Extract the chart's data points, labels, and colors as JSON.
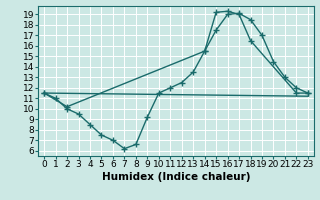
{
  "xlabel": "Humidex (Indice chaleur)",
  "bg_color": "#cce8e4",
  "line_color": "#1a6b6b",
  "grid_color": "#ffffff",
  "xlim": [
    -0.5,
    23.5
  ],
  "ylim": [
    5.5,
    19.8
  ],
  "yticks": [
    6,
    7,
    8,
    9,
    10,
    11,
    12,
    13,
    14,
    15,
    16,
    17,
    18,
    19
  ],
  "xticks": [
    0,
    1,
    2,
    3,
    4,
    5,
    6,
    7,
    8,
    9,
    10,
    11,
    12,
    13,
    14,
    15,
    16,
    17,
    18,
    19,
    20,
    21,
    22,
    23
  ],
  "line1_x": [
    0,
    1,
    2,
    3,
    4,
    5,
    6,
    7,
    8,
    9,
    10,
    11,
    12,
    13,
    14,
    15,
    16,
    17,
    18,
    19,
    20,
    21,
    22,
    23
  ],
  "line1_y": [
    11.5,
    11.0,
    10.0,
    9.5,
    8.5,
    7.5,
    7.0,
    6.2,
    6.6,
    9.2,
    11.5,
    12.0,
    12.5,
    13.5,
    15.5,
    17.5,
    19.0,
    19.1,
    18.5,
    17.0,
    14.5,
    13.0,
    12.0,
    11.5
  ],
  "line2_x": [
    0,
    2,
    14,
    15,
    16,
    17,
    18,
    22,
    23
  ],
  "line2_y": [
    11.5,
    10.2,
    15.5,
    19.2,
    19.3,
    19.0,
    16.5,
    11.5,
    11.5
  ],
  "line3_x": [
    0,
    23
  ],
  "line3_y": [
    11.5,
    11.2
  ],
  "marker_size": 3.0,
  "linewidth": 1.0,
  "font_size": 6.5
}
